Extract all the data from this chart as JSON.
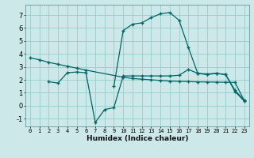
{
  "xlabel": "Humidex (Indice chaleur)",
  "bg_color": "#cce8e8",
  "grid_color": "#99cccc",
  "line_color": "#006666",
  "xlim": [
    -0.5,
    23.5
  ],
  "ylim": [
    -1.6,
    7.8
  ],
  "xticks": [
    0,
    1,
    2,
    3,
    4,
    5,
    6,
    7,
    8,
    9,
    10,
    11,
    12,
    13,
    14,
    15,
    16,
    17,
    18,
    19,
    20,
    21,
    22,
    23
  ],
  "yticks": [
    -1,
    0,
    1,
    2,
    3,
    4,
    5,
    6,
    7
  ],
  "series": [
    {
      "x": [
        0,
        1,
        2,
        3,
        4,
        5,
        6,
        10,
        11,
        12,
        13,
        14,
        15,
        16,
        17,
        18,
        19,
        20,
        21,
        22,
        23
      ],
      "y": [
        3.7,
        3.55,
        3.35,
        3.2,
        3.05,
        2.9,
        2.75,
        2.2,
        2.1,
        2.05,
        2.0,
        1.95,
        1.9,
        1.88,
        1.86,
        1.84,
        1.83,
        1.82,
        1.81,
        1.8,
        0.4
      ]
    },
    {
      "x": [
        2,
        3,
        4,
        5,
        6,
        7,
        8,
        9,
        10,
        11,
        12,
        13,
        14,
        15,
        16,
        17,
        18,
        19,
        20,
        21,
        22,
        23
      ],
      "y": [
        1.85,
        1.75,
        2.55,
        2.6,
        2.55,
        -1.3,
        -0.3,
        -0.15,
        2.3,
        2.3,
        2.3,
        2.3,
        2.3,
        2.3,
        2.35,
        2.8,
        2.5,
        2.4,
        2.5,
        2.4,
        1.2,
        0.4
      ]
    },
    {
      "x": [
        9,
        10,
        11,
        12,
        13,
        14,
        15,
        16,
        17,
        18,
        19,
        20,
        21,
        22,
        23
      ],
      "y": [
        1.5,
        5.8,
        6.3,
        6.4,
        6.8,
        7.1,
        7.2,
        6.6,
        4.5,
        2.5,
        2.45,
        2.5,
        2.4,
        1.1,
        0.35
      ]
    }
  ]
}
